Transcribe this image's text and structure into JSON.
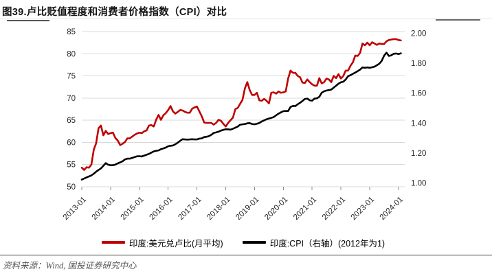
{
  "header": {
    "title": "图39.卢比贬值程度和消费者价格指数（CPI）对比"
  },
  "footer": {
    "source": "资料来源：Wind, 国投证券研究中心"
  },
  "colors": {
    "series_red": "#c00000",
    "series_black": "#000000",
    "gridline": "#d9d9d9",
    "axis_text": "#262626",
    "footer_text": "#565656"
  },
  "legend": [
    {
      "label": "印度:美元兑卢比(月平均)",
      "color": "#c00000"
    },
    {
      "label": "印度:CPI（右轴）(2012年为1)",
      "color": "#000000"
    }
  ],
  "chart_data": {
    "type": "line",
    "title": "图39.卢比贬值程度和消费者价格指数（CPI）对比",
    "x_start": "2013-01",
    "x_frequency": "monthly",
    "x_tick_labels": [
      "2013-01",
      "2014-01",
      "2015-01",
      "2016-01",
      "2017-01",
      "2018-01",
      "2019-01",
      "2020-01",
      "2021-01",
      "2022-01",
      "2023-01",
      "2024-01"
    ],
    "left_axis": {
      "min": 50,
      "max": 85,
      "step": 5,
      "ticks": [
        85,
        80,
        75,
        70,
        65,
        60,
        55,
        50
      ]
    },
    "right_axis": {
      "min": 1.0,
      "max": 2.0,
      "step": 0.2,
      "tick_labels": [
        "2.00",
        "1.80",
        "1.60",
        "1.40",
        "1.20",
        "1.00"
      ]
    },
    "grid": "horizontal-only",
    "legend_position": "bottom",
    "series": [
      {
        "name": "印度:美元兑卢比(月平均)",
        "axis": "left",
        "color": "#c00000",
        "values": [
          54.3,
          53.8,
          54.4,
          54.3,
          55.0,
          58.4,
          59.8,
          63.2,
          63.8,
          61.6,
          62.6,
          61.9,
          62.1,
          62.2,
          61.0,
          60.4,
          59.4,
          59.7,
          60.1,
          60.9,
          60.9,
          61.3,
          61.7,
          62.0,
          62.2,
          62.1,
          62.5,
          62.7,
          63.8,
          63.9,
          63.6,
          65.1,
          66.2,
          65.1,
          66.1,
          66.6,
          67.3,
          68.2,
          67.0,
          66.5,
          66.9,
          67.3,
          67.2,
          66.9,
          66.7,
          66.7,
          67.6,
          67.9,
          68.1,
          67.0,
          65.9,
          64.5,
          64.4,
          64.4,
          64.4,
          64.0,
          64.4,
          65.1,
          64.9,
          64.2,
          63.6,
          64.4,
          65.0,
          65.6,
          67.5,
          67.8,
          68.7,
          69.6,
          72.2,
          73.6,
          71.8,
          70.7,
          70.7,
          71.2,
          69.5,
          69.4,
          69.8,
          69.4,
          68.8,
          71.2,
          71.3,
          71.0,
          71.5,
          71.2,
          71.3,
          71.5,
          74.4,
          76.2,
          75.7,
          75.7,
          75.0,
          74.7,
          73.5,
          73.4,
          74.2,
          73.6,
          73.1,
          72.8,
          72.8,
          74.5,
          73.3,
          73.6,
          74.4,
          74.2,
          73.6,
          75.0,
          74.5,
          75.4,
          74.4,
          75.0,
          76.2,
          76.2,
          77.3,
          78.1,
          79.6,
          79.5,
          80.2,
          82.3,
          81.9,
          82.5,
          81.9,
          82.6,
          82.3,
          82.0,
          82.3,
          82.2,
          82.2,
          82.8,
          83.1,
          83.2,
          83.3,
          83.3,
          83.1,
          83.0
        ]
      },
      {
        "name": "印度:CPI（右轴）(2012年为1)",
        "axis": "right",
        "color": "#000000",
        "values": [
          1.046,
          1.053,
          1.06,
          1.067,
          1.073,
          1.084,
          1.097,
          1.108,
          1.118,
          1.135,
          1.152,
          1.142,
          1.138,
          1.139,
          1.143,
          1.151,
          1.157,
          1.164,
          1.176,
          1.181,
          1.181,
          1.186,
          1.191,
          1.196,
          1.197,
          1.195,
          1.201,
          1.206,
          1.212,
          1.22,
          1.228,
          1.232,
          1.234,
          1.242,
          1.247,
          1.252,
          1.261,
          1.264,
          1.266,
          1.274,
          1.284,
          1.296,
          1.306,
          1.305,
          1.304,
          1.305,
          1.306,
          1.305,
          1.305,
          1.31,
          1.312,
          1.32,
          1.322,
          1.326,
          1.335,
          1.347,
          1.35,
          1.355,
          1.362,
          1.367,
          1.371,
          1.37,
          1.368,
          1.374,
          1.381,
          1.388,
          1.4,
          1.402,
          1.404,
          1.409,
          1.41,
          1.404,
          1.402,
          1.406,
          1.411,
          1.421,
          1.428,
          1.435,
          1.44,
          1.444,
          1.449,
          1.46,
          1.471,
          1.479,
          1.487,
          1.488,
          1.488,
          1.514,
          1.521,
          1.52,
          1.532,
          1.541,
          1.553,
          1.566,
          1.568,
          1.557,
          1.555,
          1.568,
          1.57,
          1.58,
          1.606,
          1.615,
          1.62,
          1.623,
          1.626,
          1.639,
          1.651,
          1.664,
          1.673,
          1.677,
          1.691,
          1.713,
          1.719,
          1.728,
          1.736,
          1.745,
          1.755,
          1.769,
          1.767,
          1.769,
          1.767,
          1.77,
          1.774,
          1.783,
          1.793,
          1.811,
          1.845,
          1.864,
          1.843,
          1.847,
          1.857,
          1.859,
          1.855,
          1.86
        ]
      }
    ]
  }
}
